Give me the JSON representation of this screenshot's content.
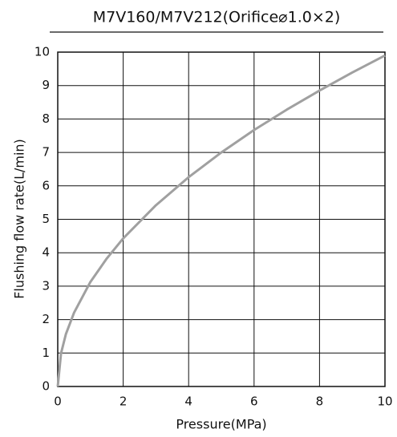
{
  "chart_data": {
    "type": "line",
    "title": "M7V160/M7V212(Orifice⌀1.0×2)",
    "x_label": "Pressure(MPa)",
    "y_label": "Flushing flow rate(L/min)",
    "x": [
      0,
      0.1,
      0.25,
      0.5,
      1,
      1.5,
      2,
      3,
      4,
      5,
      6,
      7,
      8,
      9,
      10
    ],
    "series": [
      {
        "color": "#a0a0a0",
        "values": [
          0,
          0.99,
          1.57,
          2.21,
          3.13,
          3.83,
          4.43,
          5.42,
          6.26,
          7.0,
          7.67,
          8.28,
          8.85,
          9.39,
          9.9
        ]
      }
    ],
    "xlim": [
      0,
      10
    ],
    "xticks": [
      0,
      2,
      4,
      6,
      8,
      10
    ],
    "ylim": [
      0,
      10
    ],
    "yticks": [
      0,
      1,
      2,
      3,
      4,
      5,
      6,
      7,
      8,
      9,
      10
    ],
    "grid": true
  }
}
